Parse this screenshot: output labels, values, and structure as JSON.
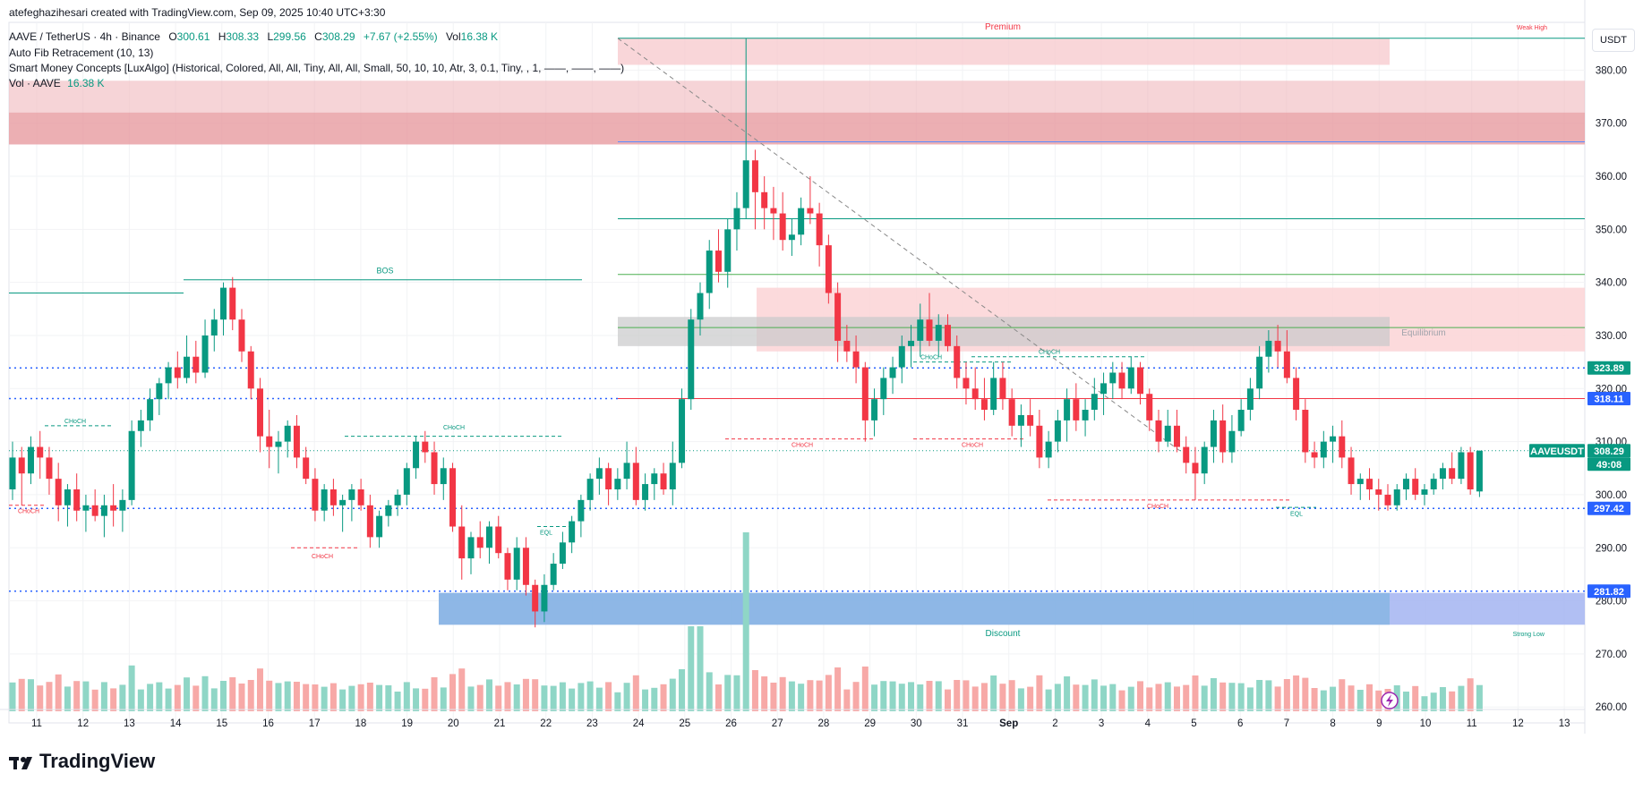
{
  "attribution": "atefeghazihesari created with TradingView.com, Sep 09, 2025 10:40 UTC+3:30",
  "legend": {
    "symbol": "AAVE / TetherUS · 4h · Binance",
    "o_label": "O",
    "o": "300.61",
    "h_label": "H",
    "h": "308.33",
    "l_label": "L",
    "l": "299.56",
    "c_label": "C",
    "c": "308.29",
    "change": "+7.67 (+2.55%)",
    "vol_label": "Vol",
    "vol": "16.38 K",
    "indicator1": "Auto Fib Retracement (10, 13)",
    "indicator2": "Smart Money Concepts [LuxAlgo] (Historical, Colored, All, All, Tiny, All, All, Small, 50, 10, 10, Atr, 3, 0.1, Tiny, , 1, ——, ——, ——)",
    "indicator3_label": "Vol · AAVE",
    "indicator3_value": "16.38 K"
  },
  "currency": "USDT",
  "brand": "TradingView",
  "colors": {
    "up": "#089981",
    "down": "#f23645",
    "volume_up": "#8fd6c6",
    "volume_down": "#f7a9a7",
    "blue_zone": "#a9b8f2",
    "red_zone": "#f7c8cc"
  },
  "chart_data": {
    "type": "candlestick",
    "symbol": "AAVE/USDT",
    "timeframe": "4h",
    "ylim": [
      257,
      389
    ],
    "y_ticks": [
      260,
      270,
      280,
      290,
      300,
      310,
      320,
      330,
      340,
      350,
      360,
      370,
      380
    ],
    "x_ticks": [
      "11",
      "12",
      "13",
      "14",
      "15",
      "16",
      "17",
      "18",
      "19",
      "20",
      "21",
      "22",
      "23",
      "24",
      "25",
      "26",
      "27",
      "28",
      "29",
      "30",
      "31",
      "Sep",
      "2",
      "3",
      "4",
      "5",
      "6",
      "7",
      "8",
      "9",
      "10",
      "11",
      "12",
      "13"
    ],
    "ohlc": [
      [
        301,
        310,
        299,
        307
      ],
      [
        307,
        309,
        298,
        304
      ],
      [
        304,
        311,
        302,
        309
      ],
      [
        309,
        312,
        303,
        307
      ],
      [
        307,
        309,
        300,
        303
      ],
      [
        303,
        306,
        295,
        298
      ],
      [
        298,
        302,
        294,
        301
      ],
      [
        301,
        304,
        295,
        297
      ],
      [
        297,
        300,
        293,
        298
      ],
      [
        298,
        301,
        295,
        296
      ],
      [
        296,
        300,
        292,
        298
      ],
      [
        298,
        302,
        294,
        297
      ],
      [
        297,
        301,
        293,
        299
      ],
      [
        299,
        314,
        298,
        312
      ],
      [
        312,
        316,
        309,
        314
      ],
      [
        314,
        320,
        312,
        318
      ],
      [
        318,
        322,
        315,
        321
      ],
      [
        321,
        325,
        318,
        324
      ],
      [
        324,
        327,
        320,
        322
      ],
      [
        322,
        330,
        321,
        326
      ],
      [
        326,
        329,
        321,
        323
      ],
      [
        323,
        333,
        322,
        330
      ],
      [
        330,
        335,
        327,
        333
      ],
      [
        333,
        340,
        330,
        339
      ],
      [
        339,
        341,
        331,
        333
      ],
      [
        333,
        335,
        325,
        327
      ],
      [
        327,
        328,
        318,
        320
      ],
      [
        320,
        322,
        308,
        311
      ],
      [
        311,
        316,
        305,
        309
      ],
      [
        309,
        312,
        304,
        310
      ],
      [
        310,
        314,
        307,
        313
      ],
      [
        313,
        315,
        305,
        307
      ],
      [
        307,
        309,
        302,
        303
      ],
      [
        303,
        305,
        295,
        297
      ],
      [
        297,
        302,
        295,
        301
      ],
      [
        301,
        303,
        296,
        298
      ],
      [
        298,
        300,
        293,
        299
      ],
      [
        299,
        302,
        295,
        301
      ],
      [
        301,
        303,
        297,
        298
      ],
      [
        298,
        300,
        290,
        292
      ],
      [
        292,
        297,
        290,
        296
      ],
      [
        296,
        299,
        294,
        298
      ],
      [
        298,
        301,
        296,
        300
      ],
      [
        300,
        306,
        298,
        305
      ],
      [
        305,
        311,
        303,
        310
      ],
      [
        310,
        312,
        306,
        308
      ],
      [
        308,
        310,
        300,
        302
      ],
      [
        302,
        307,
        299,
        305
      ],
      [
        305,
        306,
        293,
        294
      ],
      [
        294,
        298,
        284,
        288
      ],
      [
        288,
        293,
        285,
        292
      ],
      [
        292,
        295,
        288,
        290
      ],
      [
        290,
        295,
        287,
        294
      ],
      [
        294,
        296,
        288,
        289
      ],
      [
        289,
        290,
        282,
        284
      ],
      [
        284,
        292,
        282,
        290
      ],
      [
        290,
        292,
        281,
        283
      ],
      [
        283,
        284,
        275,
        278
      ],
      [
        278,
        285,
        276,
        283
      ],
      [
        283,
        289,
        282,
        287
      ],
      [
        287,
        293,
        286,
        291
      ],
      [
        291,
        296,
        289,
        295
      ],
      [
        295,
        300,
        292,
        299
      ],
      [
        299,
        304,
        297,
        303
      ],
      [
        303,
        307,
        300,
        305
      ],
      [
        305,
        306,
        298,
        301
      ],
      [
        301,
        305,
        299,
        303
      ],
      [
        303,
        310,
        301,
        306
      ],
      [
        306,
        309,
        298,
        299
      ],
      [
        299,
        304,
        297,
        302
      ],
      [
        302,
        305,
        299,
        304
      ],
      [
        304,
        306,
        300,
        301
      ],
      [
        301,
        310,
        298,
        306
      ],
      [
        306,
        320,
        305,
        318
      ],
      [
        318,
        335,
        316,
        333
      ],
      [
        333,
        340,
        330,
        338
      ],
      [
        338,
        348,
        335,
        346
      ],
      [
        346,
        350,
        340,
        342
      ],
      [
        342,
        352,
        339,
        350
      ],
      [
        350,
        357,
        346,
        354
      ],
      [
        354,
        386,
        352,
        363
      ],
      [
        363,
        365,
        350,
        357
      ],
      [
        357,
        360,
        350,
        354
      ],
      [
        354,
        358,
        348,
        353
      ],
      [
        353,
        357,
        346,
        348
      ],
      [
        348,
        352,
        345,
        349
      ],
      [
        349,
        356,
        347,
        354
      ],
      [
        354,
        360,
        351,
        353
      ],
      [
        353,
        355,
        343,
        347
      ],
      [
        347,
        349,
        336,
        338
      ],
      [
        338,
        340,
        325,
        329
      ],
      [
        329,
        332,
        325,
        327
      ],
      [
        327,
        330,
        321,
        324
      ],
      [
        324,
        325,
        310,
        314
      ],
      [
        314,
        320,
        311,
        318
      ],
      [
        318,
        324,
        315,
        322
      ],
      [
        322,
        326,
        319,
        324
      ],
      [
        324,
        330,
        321,
        328
      ],
      [
        328,
        332,
        324,
        329
      ],
      [
        329,
        336,
        326,
        333
      ],
      [
        333,
        338,
        328,
        329
      ],
      [
        329,
        334,
        326,
        332
      ],
      [
        332,
        334,
        327,
        328
      ],
      [
        328,
        330,
        320,
        322
      ],
      [
        322,
        325,
        317,
        320
      ],
      [
        320,
        324,
        316,
        318
      ],
      [
        318,
        322,
        314,
        316
      ],
      [
        316,
        325,
        315,
        322
      ],
      [
        322,
        325,
        316,
        318
      ],
      [
        318,
        320,
        311,
        313
      ],
      [
        313,
        317,
        309,
        315
      ],
      [
        315,
        318,
        311,
        313
      ],
      [
        313,
        316,
        305,
        307
      ],
      [
        307,
        312,
        305,
        310
      ],
      [
        310,
        316,
        308,
        314
      ],
      [
        314,
        320,
        310,
        318
      ],
      [
        318,
        321,
        312,
        314
      ],
      [
        314,
        318,
        311,
        316
      ],
      [
        316,
        322,
        314,
        319
      ],
      [
        319,
        323,
        315,
        321
      ],
      [
        321,
        325,
        318,
        323
      ],
      [
        323,
        325,
        318,
        320
      ],
      [
        320,
        326,
        319,
        324
      ],
      [
        324,
        325,
        317,
        319
      ],
      [
        319,
        320,
        312,
        314
      ],
      [
        314,
        316,
        308,
        310
      ],
      [
        310,
        316,
        309,
        313
      ],
      [
        313,
        316,
        308,
        309
      ],
      [
        309,
        311,
        304,
        306
      ],
      [
        306,
        309,
        299,
        304
      ],
      [
        304,
        310,
        302,
        309
      ],
      [
        309,
        316,
        306,
        314
      ],
      [
        314,
        317,
        306,
        308
      ],
      [
        308,
        315,
        306,
        312
      ],
      [
        312,
        318,
        311,
        316
      ],
      [
        316,
        322,
        314,
        320
      ],
      [
        320,
        328,
        318,
        326
      ],
      [
        326,
        331,
        323,
        329
      ],
      [
        329,
        332,
        324,
        327
      ],
      [
        327,
        331,
        321,
        322
      ],
      [
        322,
        324,
        314,
        316
      ],
      [
        316,
        318,
        306,
        308
      ],
      [
        308,
        310,
        305,
        307
      ],
      [
        307,
        312,
        305,
        310
      ],
      [
        310,
        313,
        306,
        311
      ],
      [
        311,
        314,
        305,
        307
      ],
      [
        307,
        309,
        300,
        302
      ],
      [
        302,
        304,
        299,
        303
      ],
      [
        303,
        305,
        299,
        301
      ],
      [
        301,
        303,
        297,
        300
      ],
      [
        300,
        302,
        297,
        298
      ],
      [
        298,
        302,
        297,
        301
      ],
      [
        301,
        304,
        299,
        303
      ],
      [
        303,
        305,
        299,
        300
      ],
      [
        300,
        302,
        298,
        301
      ],
      [
        301,
        304,
        300,
        303
      ],
      [
        303,
        306,
        301,
        305
      ],
      [
        305,
        308,
        302,
        303
      ],
      [
        303,
        309,
        302,
        308
      ],
      [
        308,
        309,
        300,
        301
      ],
      [
        300.61,
        308.33,
        299.56,
        308.29
      ]
    ],
    "volume_range": [
      0,
      100
    ],
    "price_labels": [
      {
        "label": "323.89",
        "value": 323.89,
        "color": "#089981"
      },
      {
        "label": "318.11",
        "value": 318.11,
        "color": "#2962ff"
      },
      {
        "label": "AAVEUSDT",
        "value": 308.29,
        "color": "#089981"
      },
      {
        "label": "308.29",
        "value": 308.29,
        "color": "#089981"
      },
      {
        "label": "49:08",
        "value": 305.9,
        "color": "#089981"
      },
      {
        "label": "297.42",
        "value": 297.42,
        "color": "#2962ff"
      },
      {
        "label": "281.82",
        "value": 281.82,
        "color": "#2962ff"
      }
    ],
    "annotations": {
      "premium": "Premium",
      "discount": "Discount",
      "equilibrium": "Equilibrium",
      "weak_high": "Weak High",
      "strong_low": "Strong Low",
      "bos": "BOS",
      "choch": "CHoCH",
      "eql": "EQL"
    }
  }
}
